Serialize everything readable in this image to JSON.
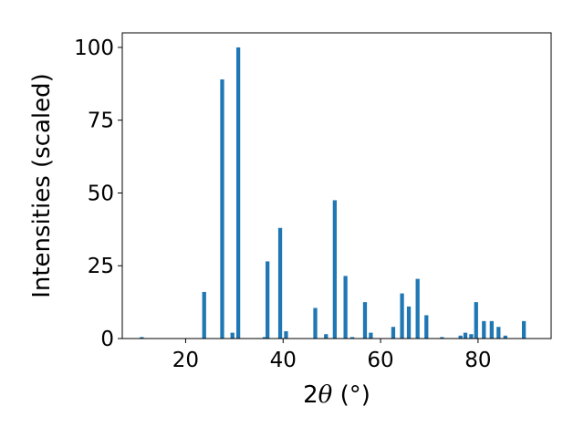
{
  "chart_data": {
    "type": "bar",
    "title": "",
    "xlabel_prefix": "2",
    "xlabel_symbol": "θ",
    "xlabel_suffix": " (°)",
    "ylabel": "Intensities (scaled)",
    "xlim": [
      7,
      95
    ],
    "ylim": [
      0,
      105
    ],
    "xticks": [
      20,
      40,
      60,
      80
    ],
    "yticks": [
      0,
      25,
      50,
      75,
      100
    ],
    "grid": false,
    "bar_color": "#1f77b4",
    "bar_width": 0.8,
    "x": [
      11.0,
      23.8,
      27.5,
      29.6,
      30.8,
      36.2,
      36.8,
      39.4,
      40.6,
      46.6,
      48.8,
      50.6,
      52.8,
      54.2,
      56.8,
      58.0,
      62.6,
      64.4,
      65.8,
      67.6,
      69.4,
      72.6,
      76.4,
      77.4,
      78.6,
      79.6,
      81.2,
      82.8,
      84.2,
      85.6,
      89.4
    ],
    "values": [
      0.5,
      16,
      89,
      2,
      100,
      0.5,
      26.5,
      38,
      2.5,
      10.5,
      1.5,
      47.5,
      21.5,
      0.5,
      12.5,
      2,
      4,
      15.5,
      11,
      20.5,
      8,
      0.5,
      1,
      2,
      1.5,
      12.5,
      6,
      6,
      4,
      1,
      6
    ]
  }
}
